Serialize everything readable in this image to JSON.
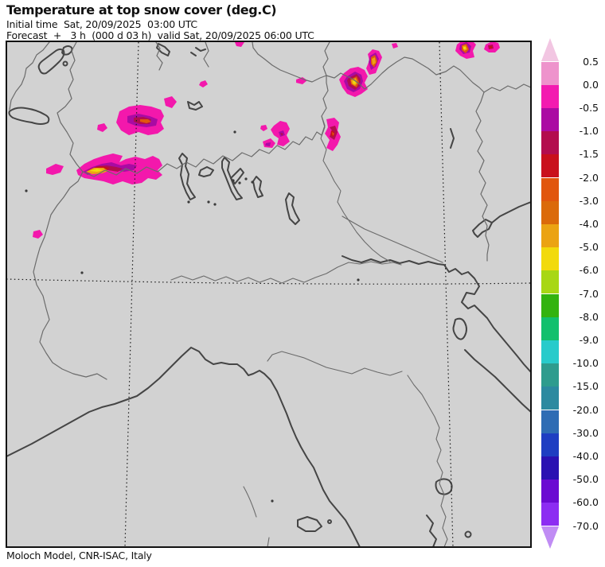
{
  "header": {
    "title": "Temperature at top snow cover (deg.C)",
    "initial_time_line": "Initial time  Sat, 20/09/2025  03:00 UTC",
    "forecast_line": "Forecast  +   3 h  (000 d 03 h)  valid Sat, 20/09/2025 06:00 UTC"
  },
  "footer": {
    "credit": "Moloch Model, CNR-ISAC, Italy"
  },
  "colorbar": {
    "labels": [
      "0.5",
      "0.0",
      "-0.5",
      "-1.0",
      "-1.5",
      "-2.0",
      "-3.0",
      "-4.0",
      "-5.0",
      "-6.0",
      "-7.0",
      "-8.0",
      "-9.0",
      "-10.0",
      "-15.0",
      "-20.0",
      "-30.0",
      "-40.0",
      "-50.0",
      "-60.0",
      "-70.0"
    ],
    "colors": [
      "#ee93cc",
      "#f31bb0",
      "#ab0ba3",
      "#b30d4e",
      "#c9101c",
      "#e1560e",
      "#db6a0a",
      "#eba313",
      "#f2da0c",
      "#a8d714",
      "#33b30f",
      "#12c06d",
      "#28cbcb",
      "#2e9c8e",
      "#2c8aa0",
      "#2e6cb4",
      "#1e3ec2",
      "#2a12b2",
      "#6b0bd2",
      "#8c2df2"
    ],
    "arrow_top_color": "#f2c6e2",
    "arrow_bottom_color": "#c08cf4"
  },
  "palette": {
    "bg": "#d2d2d2",
    "frame": "#111111",
    "coast": "#454545",
    "border": "#6b6b6b",
    "grid": "#1c1c1c",
    "speck": "#3a3a3a",
    "magenta": "#f318ac",
    "purple": "#a90ba3",
    "crimson": "#b30d4e",
    "red": "#c9101c",
    "orangered": "#e1560e",
    "amber": "#eba313",
    "yellow": "#f2da0c"
  },
  "chart_data": {
    "type": "heatmap",
    "variable": "Temperature at top snow cover (deg.C)",
    "model_credit": "Moloch Model, CNR-ISAC, Italy",
    "initial_time": "Sat, 20/09/2025 03:00 UTC",
    "valid_time": "Sat, 20/09/2025 06:00 UTC",
    "forecast_lead": "+ 3 h (000 d 03 h)",
    "legend_boundaries_degC": [
      0.5,
      0.0,
      -0.5,
      -1.0,
      -1.5,
      -2.0,
      -3.0,
      -4.0,
      -5.0,
      -6.0,
      -7.0,
      -8.0,
      -9.0,
      -10.0,
      -15.0,
      -20.0,
      -30.0,
      -40.0,
      -50.0,
      -60.0,
      -70.0
    ],
    "legend_position": "right",
    "depicted_values_note": "Scattered snow-cover patches over the Alpine arc, mostly 0 to -2 degC (magenta/pink) with small cores reaching about -4 to -6 degC (red/orange/yellow)"
  }
}
